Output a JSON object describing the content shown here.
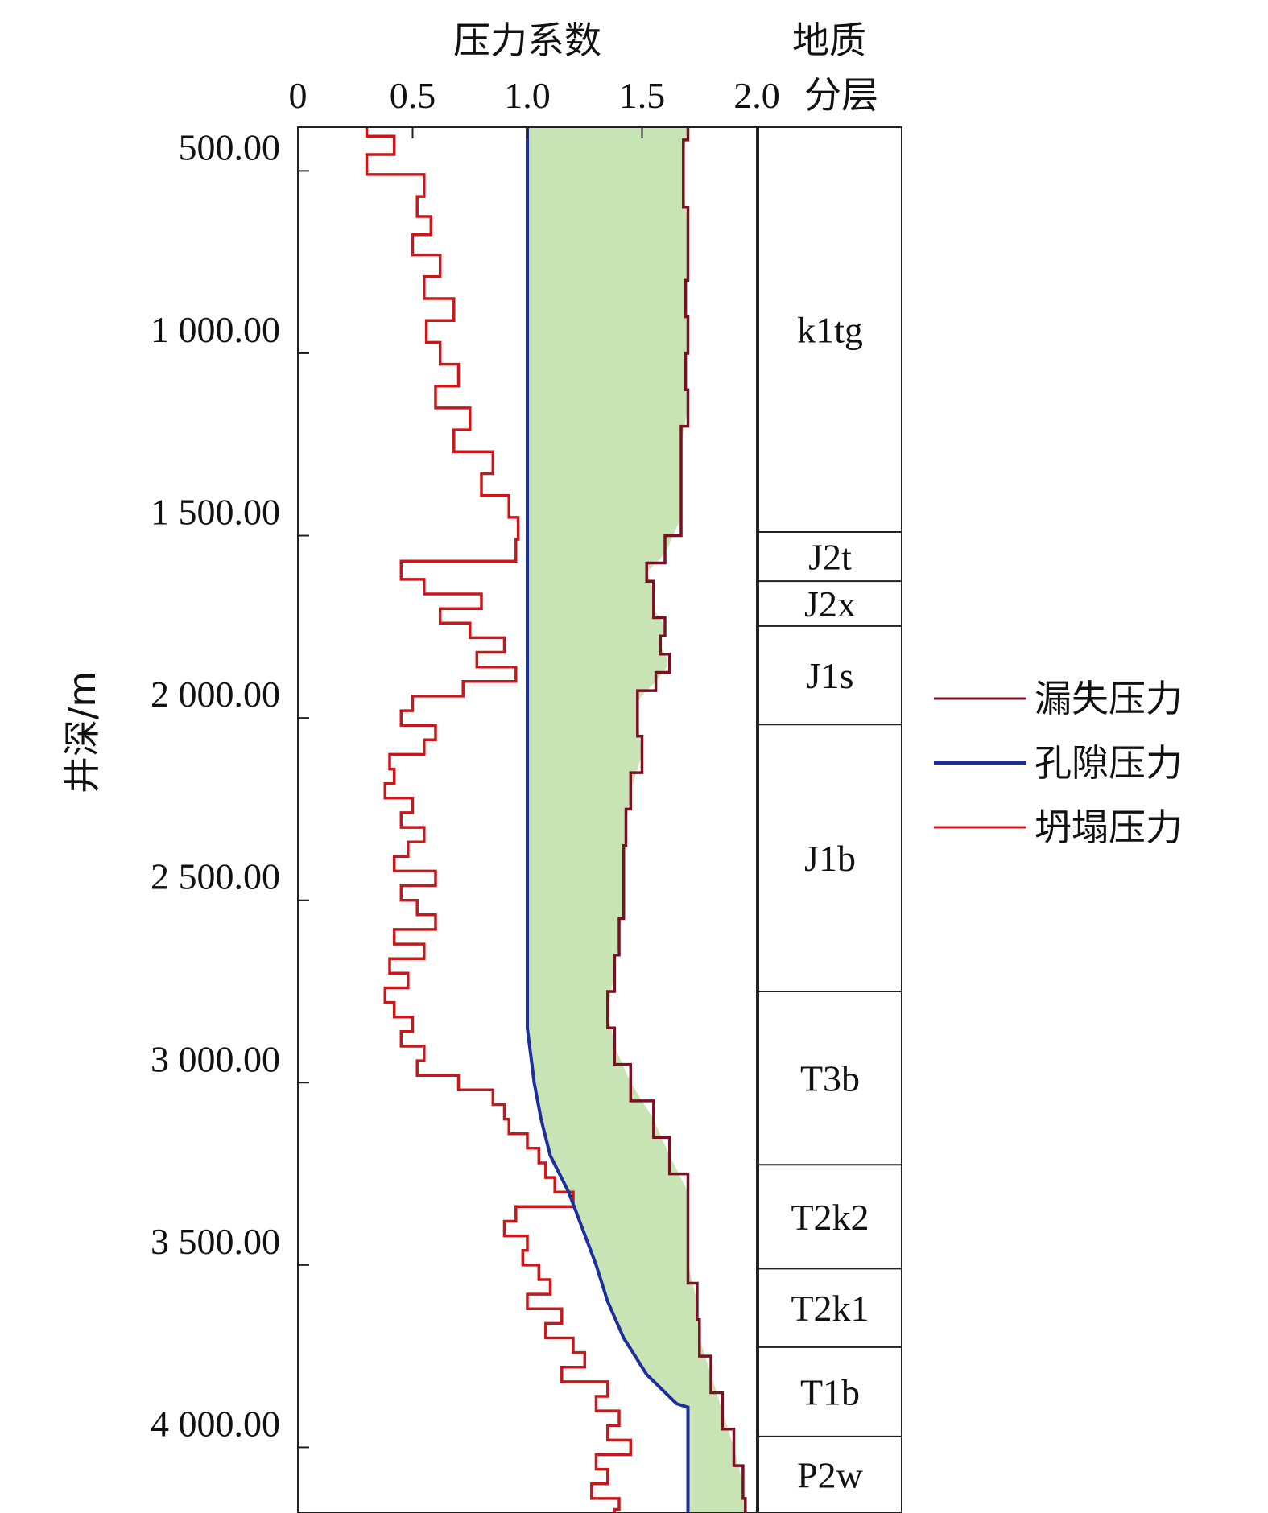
{
  "chart_data": {
    "type": "line",
    "x_axis": {
      "title": "压力系数",
      "range": [
        0,
        2.0
      ],
      "ticks": [
        0,
        0.5,
        1.0,
        1.5,
        2.0
      ],
      "tick_labels": [
        "0",
        "0.5",
        "1.0",
        "1.5",
        "2.0"
      ],
      "position": "top"
    },
    "y_axis": {
      "title": "井深/m",
      "range": [
        380,
        4180
      ],
      "inverted": true,
      "ticks": [
        500,
        1000,
        1500,
        2000,
        2500,
        3000,
        3500,
        4000
      ],
      "tick_labels": [
        "500.00",
        "1 000.00",
        "1 500.00",
        "2 000.00",
        "2 500.00",
        "3 000.00",
        "3 500.00",
        "4 000.00"
      ]
    },
    "strata_title": [
      "地质",
      "分层"
    ],
    "strata": [
      {
        "name": "k1tg",
        "top": 380,
        "bottom": 1490
      },
      {
        "name": "J2t",
        "top": 1490,
        "bottom": 1625
      },
      {
        "name": "J2x",
        "top": 1625,
        "bottom": 1748
      },
      {
        "name": "J1s",
        "top": 1748,
        "bottom": 2018
      },
      {
        "name": "J1b",
        "top": 2018,
        "bottom": 2750
      },
      {
        "name": "T3b",
        "top": 2750,
        "bottom": 3225
      },
      {
        "name": "T2k2",
        "top": 3225,
        "bottom": 3510
      },
      {
        "name": "T2k1",
        "top": 3510,
        "bottom": 3725
      },
      {
        "name": "T1b",
        "top": 3725,
        "bottom": 3970
      },
      {
        "name": "P2w",
        "top": 3970,
        "bottom": 4180
      }
    ],
    "safe_window_color": "#c8e4b4",
    "series": [
      {
        "name": "漏失压力",
        "color": "#7b1022",
        "depth": [
          380,
          450,
          550,
          650,
          750,
          850,
          950,
          1050,
          1150,
          1250,
          1350,
          1450,
          1550,
          1600,
          1650,
          1700,
          1750,
          1800,
          1850,
          1900,
          1950,
          2000,
          2100,
          2200,
          2300,
          2400,
          2500,
          2600,
          2700,
          2800,
          2900,
          3000,
          3100,
          3200,
          3300,
          3400,
          3500,
          3600,
          3700,
          3800,
          3900,
          4000,
          4100,
          4180
        ],
        "values": [
          1.7,
          1.68,
          1.68,
          1.7,
          1.7,
          1.69,
          1.7,
          1.69,
          1.7,
          1.67,
          1.67,
          1.67,
          1.6,
          1.52,
          1.55,
          1.55,
          1.6,
          1.58,
          1.62,
          1.56,
          1.48,
          1.48,
          1.5,
          1.45,
          1.43,
          1.42,
          1.42,
          1.4,
          1.38,
          1.35,
          1.38,
          1.45,
          1.55,
          1.62,
          1.7,
          1.7,
          1.7,
          1.74,
          1.75,
          1.8,
          1.85,
          1.9,
          1.94,
          1.95
        ]
      },
      {
        "name": "孔隙压力",
        "color": "#1c2f9a",
        "depth": [
          380,
          2800,
          2850,
          2950,
          3000,
          3100,
          3200,
          3300,
          3400,
          3500,
          3600,
          3700,
          3800,
          3880,
          3890,
          4180
        ],
        "values": [
          1.0,
          1.0,
          1.0,
          1.02,
          1.03,
          1.06,
          1.1,
          1.18,
          1.24,
          1.3,
          1.35,
          1.42,
          1.52,
          1.65,
          1.7,
          1.7
        ]
      },
      {
        "name": "坍塌压力",
        "color": "#c8181c",
        "depth": [
          380,
          430,
          480,
          540,
          600,
          650,
          700,
          760,
          820,
          880,
          940,
          1000,
          1060,
          1120,
          1180,
          1240,
          1300,
          1360,
          1420,
          1480,
          1540,
          1600,
          1640,
          1680,
          1720,
          1760,
          1800,
          1840,
          1880,
          1920,
          1960,
          2000,
          2040,
          2080,
          2120,
          2160,
          2200,
          2240,
          2280,
          2320,
          2360,
          2400,
          2440,
          2480,
          2520,
          2560,
          2600,
          2640,
          2680,
          2720,
          2760,
          2800,
          2840,
          2880,
          2920,
          2960,
          3000,
          3040,
          3080,
          3120,
          3160,
          3200,
          3240,
          3280,
          3320,
          3360,
          3400,
          3440,
          3480,
          3520,
          3560,
          3600,
          3640,
          3680,
          3720,
          3760,
          3800,
          3840,
          3880,
          3920,
          3960,
          4000,
          4040,
          4080,
          4120,
          4160,
          4180
        ],
        "values": [
          0.3,
          0.42,
          0.3,
          0.55,
          0.52,
          0.58,
          0.5,
          0.62,
          0.55,
          0.68,
          0.56,
          0.62,
          0.7,
          0.6,
          0.75,
          0.68,
          0.85,
          0.8,
          0.92,
          0.96,
          0.95,
          0.45,
          0.55,
          0.8,
          0.62,
          0.75,
          0.9,
          0.78,
          0.95,
          0.72,
          0.5,
          0.45,
          0.6,
          0.55,
          0.4,
          0.42,
          0.38,
          0.5,
          0.45,
          0.55,
          0.48,
          0.42,
          0.6,
          0.45,
          0.52,
          0.6,
          0.42,
          0.55,
          0.4,
          0.48,
          0.38,
          0.42,
          0.5,
          0.45,
          0.55,
          0.52,
          0.7,
          0.85,
          0.9,
          0.92,
          1.0,
          1.05,
          1.08,
          1.12,
          1.2,
          0.95,
          0.9,
          1.0,
          0.98,
          1.05,
          1.1,
          1.0,
          1.15,
          1.08,
          1.2,
          1.25,
          1.15,
          1.35,
          1.3,
          1.4,
          1.35,
          1.45,
          1.3,
          1.35,
          1.28,
          1.4,
          1.38
        ]
      }
    ],
    "legend_position": "right-middle"
  }
}
